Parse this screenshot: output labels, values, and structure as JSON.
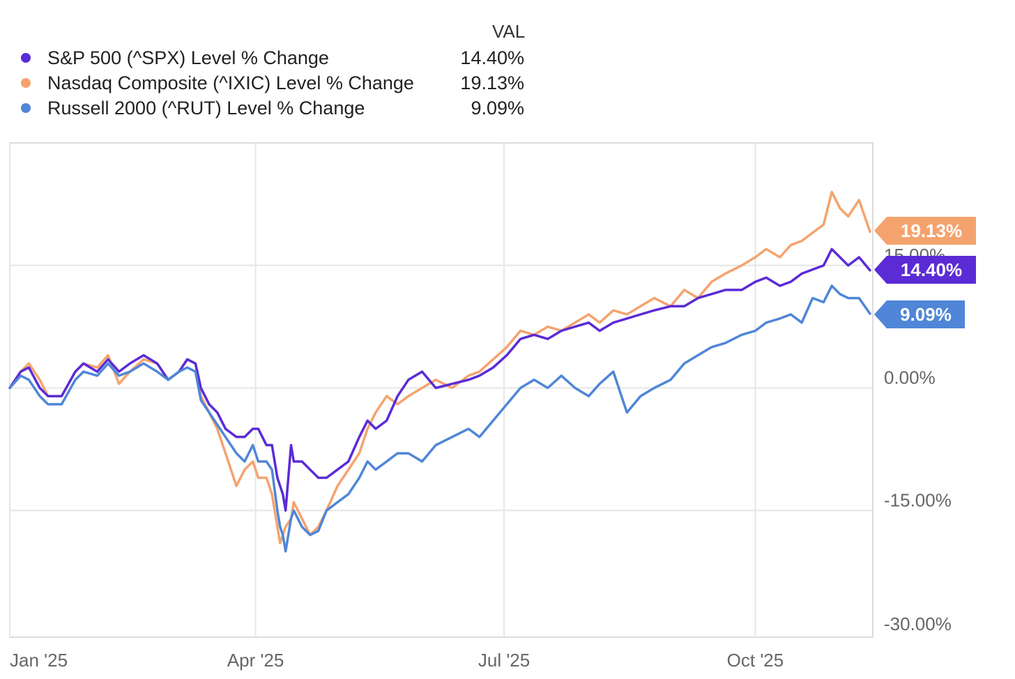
{
  "legend": {
    "value_header": "VAL",
    "items": [
      {
        "name": "S&P 500 (^SPX) Level % Change",
        "value": "14.40%",
        "color": "#5b2bd6"
      },
      {
        "name": "Nasdaq Composite (^IXIC) Level % Change",
        "value": "19.13%",
        "color": "#f5a36e"
      },
      {
        "name": "Russell 2000 (^RUT) Level % Change",
        "value": "9.09%",
        "color": "#4f86d8"
      }
    ]
  },
  "chart_data": {
    "type": "line",
    "title": "",
    "xlabel": "",
    "ylabel": "",
    "x_range": [
      "2025-01-01",
      "2025-11-12"
    ],
    "ylim": [
      -30,
      30
    ],
    "y_ticks": [
      {
        "value": 15,
        "label": "15.00%"
      },
      {
        "value": 0,
        "label": "0.00%"
      },
      {
        "value": -15,
        "label": "-15.00%"
      },
      {
        "value": -30,
        "label": "-30.00%"
      }
    ],
    "x_ticks": [
      {
        "date": "2025-01-01",
        "label": "Jan '25"
      },
      {
        "date": "2025-04-01",
        "label": "Apr '25"
      },
      {
        "date": "2025-07-01",
        "label": "Jul '25"
      },
      {
        "date": "2025-10-01",
        "label": "Oct '25"
      }
    ],
    "grid": true,
    "legend_position": "top-left",
    "series": [
      {
        "name": "Nasdaq Composite (^IXIC) Level % Change",
        "color": "#f5a36e",
        "end_label": "19.13%",
        "points": [
          [
            "2025-01-01",
            0
          ],
          [
            "2025-01-05",
            2
          ],
          [
            "2025-01-08",
            3
          ],
          [
            "2025-01-12",
            1
          ],
          [
            "2025-01-15",
            -1
          ],
          [
            "2025-01-20",
            -1
          ],
          [
            "2025-01-25",
            2
          ],
          [
            "2025-01-28",
            3
          ],
          [
            "2025-02-02",
            2.5
          ],
          [
            "2025-02-06",
            4
          ],
          [
            "2025-02-10",
            0.5
          ],
          [
            "2025-02-14",
            2
          ],
          [
            "2025-02-19",
            3.5
          ],
          [
            "2025-02-24",
            3
          ],
          [
            "2025-02-28",
            1
          ],
          [
            "2025-03-04",
            2
          ],
          [
            "2025-03-07",
            3.5
          ],
          [
            "2025-03-10",
            3
          ],
          [
            "2025-03-12",
            -1
          ],
          [
            "2025-03-15",
            -3
          ],
          [
            "2025-03-18",
            -5
          ],
          [
            "2025-03-21",
            -8
          ],
          [
            "2025-03-25",
            -12
          ],
          [
            "2025-03-28",
            -10
          ],
          [
            "2025-03-31",
            -9
          ],
          [
            "2025-04-02",
            -11
          ],
          [
            "2025-04-05",
            -11
          ],
          [
            "2025-04-07",
            -13
          ],
          [
            "2025-04-09",
            -17
          ],
          [
            "2025-04-10",
            -19
          ],
          [
            "2025-04-11",
            -18
          ],
          [
            "2025-04-12",
            -17
          ],
          [
            "2025-04-14",
            -16
          ],
          [
            "2025-04-15",
            -14
          ],
          [
            "2025-04-18",
            -16
          ],
          [
            "2025-04-21",
            -18
          ],
          [
            "2025-04-24",
            -17
          ],
          [
            "2025-04-27",
            -15
          ],
          [
            "2025-05-01",
            -12
          ],
          [
            "2025-05-05",
            -10
          ],
          [
            "2025-05-09",
            -8
          ],
          [
            "2025-05-12",
            -5
          ],
          [
            "2025-05-15",
            -3
          ],
          [
            "2025-05-19",
            -1
          ],
          [
            "2025-05-23",
            -2
          ],
          [
            "2025-05-27",
            -1
          ],
          [
            "2025-06-01",
            0
          ],
          [
            "2025-06-06",
            1
          ],
          [
            "2025-06-12",
            0
          ],
          [
            "2025-06-18",
            1.5
          ],
          [
            "2025-06-22",
            2
          ],
          [
            "2025-06-27",
            3.5
          ],
          [
            "2025-07-02",
            5
          ],
          [
            "2025-07-07",
            7
          ],
          [
            "2025-07-12",
            6.5
          ],
          [
            "2025-07-17",
            7.5
          ],
          [
            "2025-07-22",
            7
          ],
          [
            "2025-07-27",
            8
          ],
          [
            "2025-08-01",
            9
          ],
          [
            "2025-08-05",
            8
          ],
          [
            "2025-08-10",
            9.5
          ],
          [
            "2025-08-15",
            9
          ],
          [
            "2025-08-20",
            10
          ],
          [
            "2025-08-25",
            11
          ],
          [
            "2025-08-31",
            10
          ],
          [
            "2025-09-05",
            12
          ],
          [
            "2025-09-10",
            11
          ],
          [
            "2025-09-15",
            13
          ],
          [
            "2025-09-20",
            14
          ],
          [
            "2025-09-26",
            15
          ],
          [
            "2025-10-01",
            16
          ],
          [
            "2025-10-05",
            17
          ],
          [
            "2025-10-10",
            16
          ],
          [
            "2025-10-14",
            17.5
          ],
          [
            "2025-10-18",
            18
          ],
          [
            "2025-10-22",
            19
          ],
          [
            "2025-10-26",
            20
          ],
          [
            "2025-10-29",
            24
          ],
          [
            "2025-11-01",
            22
          ],
          [
            "2025-11-04",
            21
          ],
          [
            "2025-11-08",
            23
          ],
          [
            "2025-11-12",
            19.13
          ]
        ]
      },
      {
        "name": "S&P 500 (^SPX) Level % Change",
        "color": "#5b2bd6",
        "end_label": "14.40%",
        "points": [
          [
            "2025-01-01",
            0
          ],
          [
            "2025-01-05",
            2
          ],
          [
            "2025-01-08",
            2.5
          ],
          [
            "2025-01-12",
            0
          ],
          [
            "2025-01-15",
            -1
          ],
          [
            "2025-01-20",
            -1
          ],
          [
            "2025-01-25",
            2
          ],
          [
            "2025-01-28",
            3
          ],
          [
            "2025-02-02",
            2
          ],
          [
            "2025-02-06",
            3.5
          ],
          [
            "2025-02-10",
            2
          ],
          [
            "2025-02-14",
            3
          ],
          [
            "2025-02-19",
            4
          ],
          [
            "2025-02-24",
            3
          ],
          [
            "2025-02-28",
            1
          ],
          [
            "2025-03-04",
            2
          ],
          [
            "2025-03-07",
            3.5
          ],
          [
            "2025-03-10",
            3
          ],
          [
            "2025-03-12",
            0
          ],
          [
            "2025-03-15",
            -2
          ],
          [
            "2025-03-18",
            -3
          ],
          [
            "2025-03-21",
            -5
          ],
          [
            "2025-03-25",
            -6
          ],
          [
            "2025-03-28",
            -6
          ],
          [
            "2025-03-31",
            -5
          ],
          [
            "2025-04-02",
            -5
          ],
          [
            "2025-04-05",
            -7
          ],
          [
            "2025-04-07",
            -7
          ],
          [
            "2025-04-09",
            -11
          ],
          [
            "2025-04-10",
            -12
          ],
          [
            "2025-04-11",
            -13
          ],
          [
            "2025-04-12",
            -15
          ],
          [
            "2025-04-14",
            -7
          ],
          [
            "2025-04-15",
            -9
          ],
          [
            "2025-04-18",
            -9
          ],
          [
            "2025-04-21",
            -10
          ],
          [
            "2025-04-24",
            -11
          ],
          [
            "2025-04-27",
            -11
          ],
          [
            "2025-05-01",
            -10
          ],
          [
            "2025-05-05",
            -9
          ],
          [
            "2025-05-09",
            -6
          ],
          [
            "2025-05-12",
            -4
          ],
          [
            "2025-05-15",
            -5
          ],
          [
            "2025-05-19",
            -4
          ],
          [
            "2025-05-23",
            -1
          ],
          [
            "2025-05-27",
            1
          ],
          [
            "2025-06-01",
            2
          ],
          [
            "2025-06-06",
            0
          ],
          [
            "2025-06-12",
            0.5
          ],
          [
            "2025-06-18",
            1
          ],
          [
            "2025-06-22",
            1.5
          ],
          [
            "2025-06-27",
            2.5
          ],
          [
            "2025-07-02",
            4
          ],
          [
            "2025-07-07",
            6
          ],
          [
            "2025-07-12",
            6.5
          ],
          [
            "2025-07-17",
            6
          ],
          [
            "2025-07-22",
            7
          ],
          [
            "2025-07-27",
            7.5
          ],
          [
            "2025-08-01",
            8
          ],
          [
            "2025-08-05",
            7
          ],
          [
            "2025-08-10",
            8
          ],
          [
            "2025-08-15",
            8.5
          ],
          [
            "2025-08-20",
            9
          ],
          [
            "2025-08-25",
            9.5
          ],
          [
            "2025-08-31",
            10
          ],
          [
            "2025-09-05",
            10
          ],
          [
            "2025-09-10",
            11
          ],
          [
            "2025-09-15",
            11.5
          ],
          [
            "2025-09-20",
            12
          ],
          [
            "2025-09-26",
            12
          ],
          [
            "2025-10-01",
            13
          ],
          [
            "2025-10-05",
            13.5
          ],
          [
            "2025-10-10",
            12.5
          ],
          [
            "2025-10-14",
            13
          ],
          [
            "2025-10-18",
            14
          ],
          [
            "2025-10-22",
            14.5
          ],
          [
            "2025-10-26",
            15
          ],
          [
            "2025-10-29",
            17
          ],
          [
            "2025-11-01",
            16
          ],
          [
            "2025-11-04",
            15
          ],
          [
            "2025-11-08",
            16
          ],
          [
            "2025-11-12",
            14.4
          ]
        ]
      },
      {
        "name": "Russell 2000 (^RUT) Level % Change",
        "color": "#4f86d8",
        "end_label": "9.09%",
        "points": [
          [
            "2025-01-01",
            0
          ],
          [
            "2025-01-05",
            1.5
          ],
          [
            "2025-01-08",
            1
          ],
          [
            "2025-01-12",
            -1
          ],
          [
            "2025-01-15",
            -2
          ],
          [
            "2025-01-20",
            -2
          ],
          [
            "2025-01-25",
            1
          ],
          [
            "2025-01-28",
            2
          ],
          [
            "2025-02-02",
            1.5
          ],
          [
            "2025-02-06",
            3
          ],
          [
            "2025-02-10",
            1.5
          ],
          [
            "2025-02-14",
            2
          ],
          [
            "2025-02-19",
            3
          ],
          [
            "2025-02-24",
            2
          ],
          [
            "2025-02-28",
            1
          ],
          [
            "2025-03-04",
            2
          ],
          [
            "2025-03-07",
            2.5
          ],
          [
            "2025-03-10",
            2
          ],
          [
            "2025-03-12",
            -1.5
          ],
          [
            "2025-03-15",
            -3
          ],
          [
            "2025-03-18",
            -4.5
          ],
          [
            "2025-03-21",
            -6
          ],
          [
            "2025-03-25",
            -8
          ],
          [
            "2025-03-28",
            -9
          ],
          [
            "2025-03-31",
            -7
          ],
          [
            "2025-04-02",
            -9
          ],
          [
            "2025-04-05",
            -9
          ],
          [
            "2025-04-07",
            -10
          ],
          [
            "2025-04-09",
            -15
          ],
          [
            "2025-04-10",
            -17
          ],
          [
            "2025-04-11",
            -18
          ],
          [
            "2025-04-12",
            -20
          ],
          [
            "2025-04-14",
            -16
          ],
          [
            "2025-04-15",
            -15
          ],
          [
            "2025-04-18",
            -17
          ],
          [
            "2025-04-21",
            -18
          ],
          [
            "2025-04-24",
            -17.5
          ],
          [
            "2025-04-27",
            -15
          ],
          [
            "2025-05-01",
            -14
          ],
          [
            "2025-05-05",
            -13
          ],
          [
            "2025-05-09",
            -11
          ],
          [
            "2025-05-12",
            -9
          ],
          [
            "2025-05-15",
            -10
          ],
          [
            "2025-05-19",
            -9
          ],
          [
            "2025-05-23",
            -8
          ],
          [
            "2025-05-27",
            -8
          ],
          [
            "2025-06-01",
            -9
          ],
          [
            "2025-06-06",
            -7
          ],
          [
            "2025-06-12",
            -6
          ],
          [
            "2025-06-18",
            -5
          ],
          [
            "2025-06-22",
            -6
          ],
          [
            "2025-06-27",
            -4
          ],
          [
            "2025-07-02",
            -2
          ],
          [
            "2025-07-07",
            0
          ],
          [
            "2025-07-12",
            1
          ],
          [
            "2025-07-17",
            0
          ],
          [
            "2025-07-22",
            1.5
          ],
          [
            "2025-07-27",
            0
          ],
          [
            "2025-08-01",
            -1
          ],
          [
            "2025-08-05",
            0.5
          ],
          [
            "2025-08-10",
            2
          ],
          [
            "2025-08-15",
            -3
          ],
          [
            "2025-08-20",
            -1
          ],
          [
            "2025-08-25",
            0
          ],
          [
            "2025-08-31",
            1
          ],
          [
            "2025-09-05",
            3
          ],
          [
            "2025-09-10",
            4
          ],
          [
            "2025-09-15",
            5
          ],
          [
            "2025-09-20",
            5.5
          ],
          [
            "2025-09-26",
            6.5
          ],
          [
            "2025-10-01",
            7
          ],
          [
            "2025-10-05",
            8
          ],
          [
            "2025-10-10",
            8.5
          ],
          [
            "2025-10-14",
            9
          ],
          [
            "2025-10-18",
            8
          ],
          [
            "2025-10-22",
            11
          ],
          [
            "2025-10-26",
            10.5
          ],
          [
            "2025-10-29",
            12.5
          ],
          [
            "2025-11-01",
            11.5
          ],
          [
            "2025-11-04",
            11
          ],
          [
            "2025-11-08",
            11
          ],
          [
            "2025-11-12",
            9.09
          ]
        ]
      }
    ]
  }
}
